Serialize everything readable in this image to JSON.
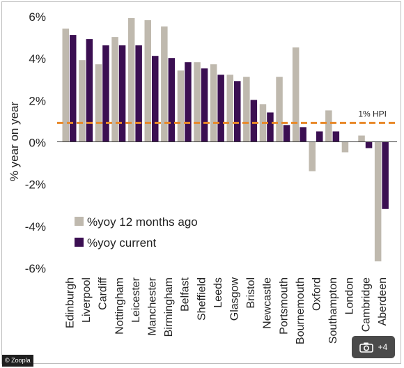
{
  "chart_data": {
    "type": "bar",
    "ylabel": "% year on year",
    "ylim": [
      -6,
      6
    ],
    "yticks": [
      6,
      4,
      2,
      0,
      -2,
      -4,
      -6
    ],
    "ytick_labels": [
      "6%",
      "4%",
      "2%",
      "0%",
      "-2%",
      "-4%",
      "-6%"
    ],
    "categories": [
      "Edinburgh",
      "Liverpool",
      "Cardiff",
      "Nottingham",
      "Leicester",
      "Manchester",
      "Birmingham",
      "Belfast",
      "Sheffield",
      "Leeds",
      "Glasgow",
      "Bristol",
      "Newcastle",
      "Portsmouth",
      "Bournemouth",
      "Oxford",
      "Southampton",
      "London",
      "Cambridge",
      "Aberdeen"
    ],
    "series": [
      {
        "name": "%yoy 12 months ago",
        "color": "#bfb9ae",
        "values": [
          5.4,
          3.9,
          3.7,
          5.0,
          5.9,
          5.8,
          5.5,
          3.4,
          3.8,
          3.7,
          3.2,
          3.1,
          1.8,
          3.1,
          4.5,
          -1.4,
          1.5,
          -0.5,
          0.3,
          -5.7
        ]
      },
      {
        "name": "%yoy current",
        "color": "#3b0f52",
        "values": [
          5.1,
          4.9,
          4.6,
          4.6,
          4.6,
          4.1,
          4.0,
          3.8,
          3.5,
          3.2,
          2.9,
          2.0,
          1.4,
          0.8,
          0.7,
          0.5,
          0.5,
          0.0,
          -0.3,
          -3.2
        ]
      }
    ],
    "reference_line": {
      "label": "1% HPI",
      "value": 0.9,
      "color": "#e8892a",
      "style": "dashed"
    },
    "legend_position": "lower-left",
    "grid": false
  },
  "watermark": {
    "credit": "© Zoopla"
  },
  "gallery_button": {
    "icon": "camera-icon",
    "count": "+4"
  }
}
